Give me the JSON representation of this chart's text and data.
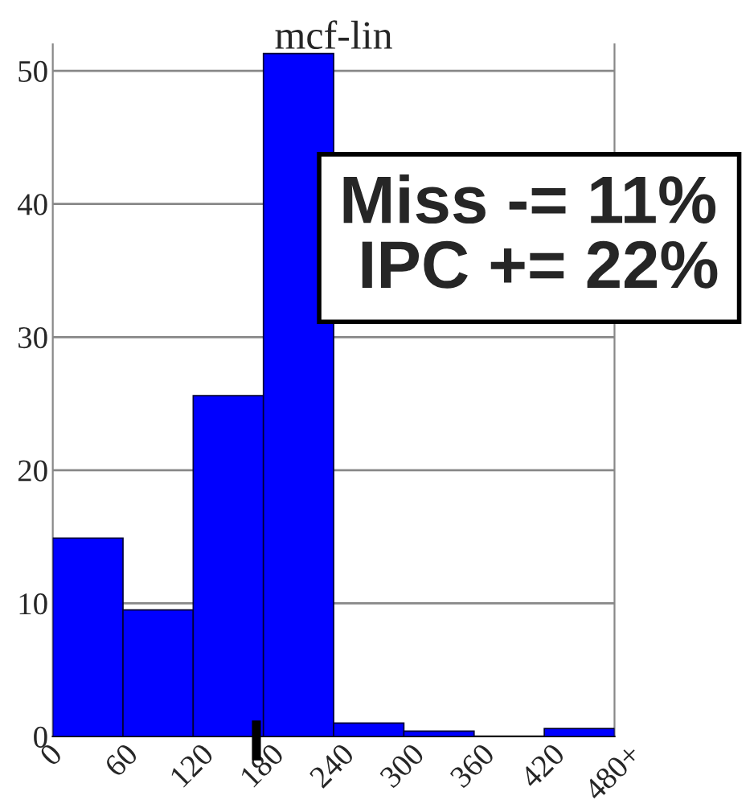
{
  "chart_data": {
    "type": "histogram",
    "title": "mcf-lin",
    "bins": [
      0,
      60,
      120,
      180,
      240,
      300,
      360,
      420,
      480
    ],
    "values": [
      14.9,
      9.5,
      25.6,
      51.3,
      1.0,
      0.4,
      0,
      0.6
    ],
    "color": "#0000ff",
    "xlim": [
      0,
      480
    ],
    "xticks": [
      0,
      60,
      120,
      180,
      240,
      300,
      360,
      420,
      {
        "value": 480,
        "label": "480+"
      }
    ],
    "ylim": [
      0,
      52
    ],
    "yticks": [
      0,
      10,
      20,
      30,
      40,
      50
    ],
    "grid": "y",
    "annotations": [
      "Miss -= 11%\n IPC += 22%"
    ]
  }
}
